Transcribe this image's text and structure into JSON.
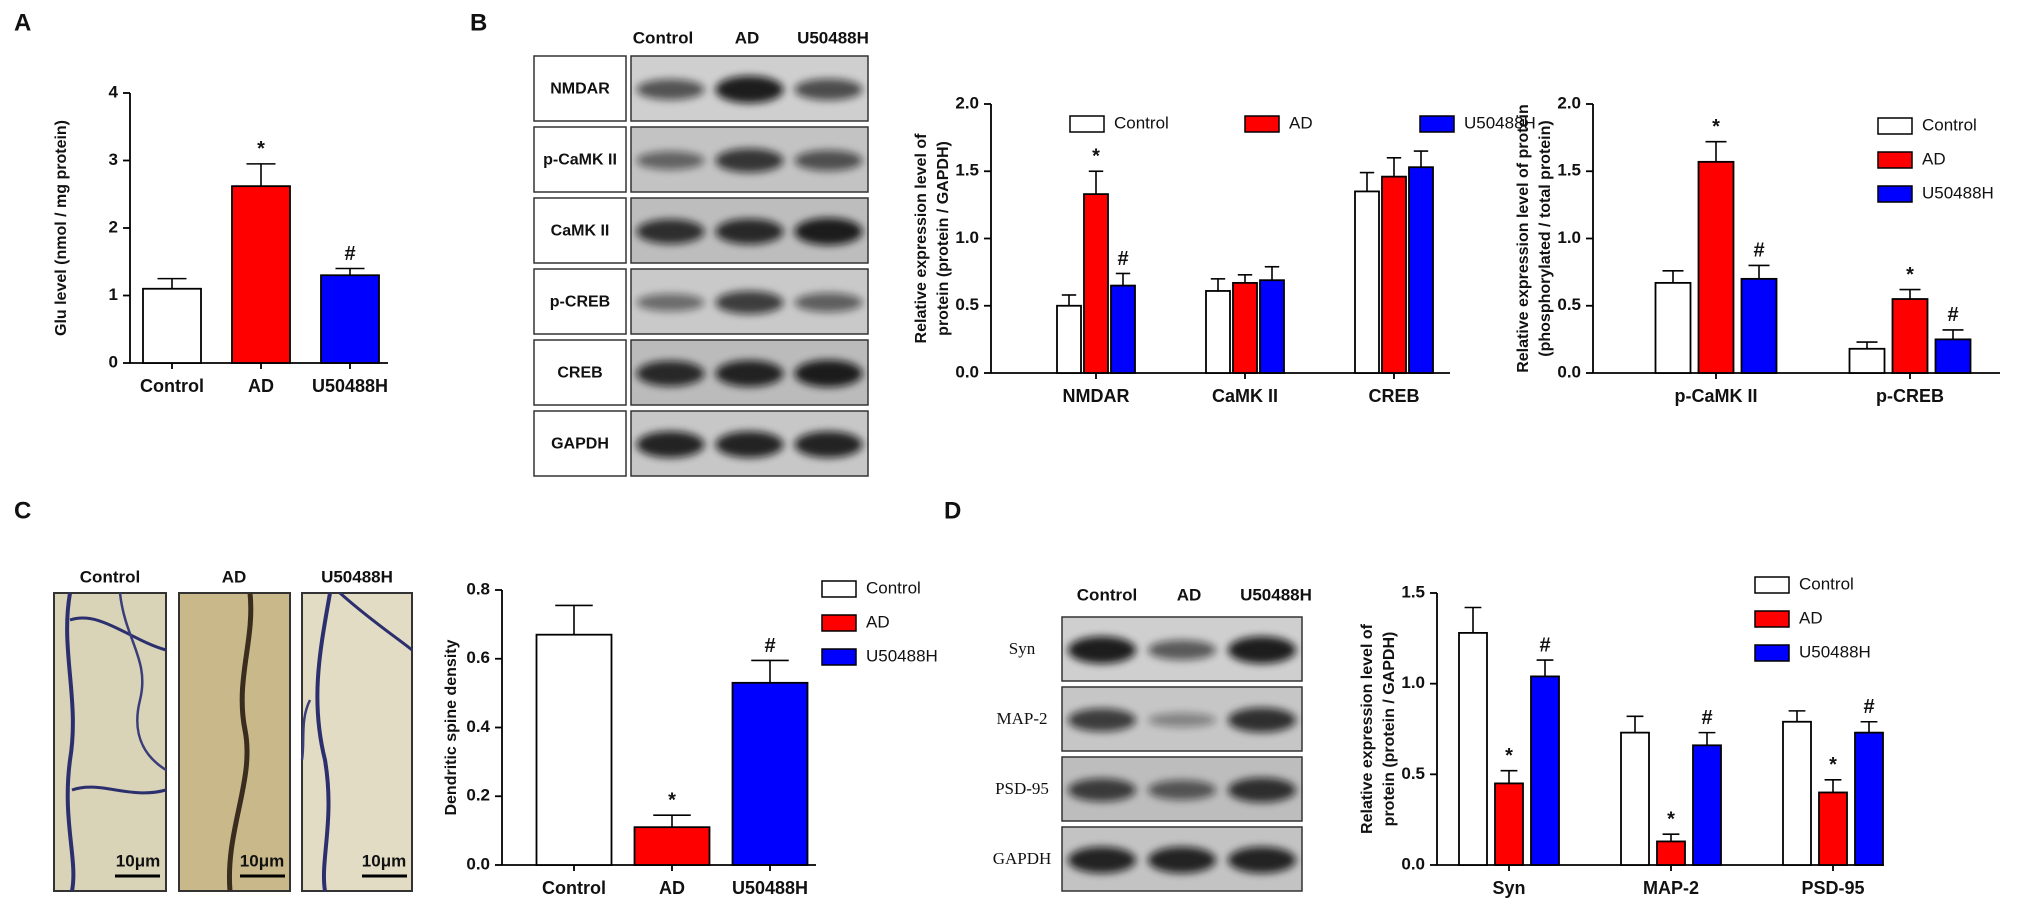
{
  "panel_labels": [
    "A",
    "B",
    "C",
    "D"
  ],
  "blots": [
    {
      "lanes": [
        "Control",
        "AD",
        "U50488H"
      ],
      "rows": [
        "NMDAR",
        "p-CaMK II",
        "CaMK II",
        "p-CREB",
        "CREB",
        "GAPDH"
      ]
    },
    {
      "lanes": [
        "Control",
        "AD",
        "U50488H"
      ],
      "rows": [
        "Syn",
        "MAP-2",
        "PSD-95",
        "GAPDH"
      ]
    }
  ],
  "micrographs": {
    "labels": [
      "Control",
      "AD",
      "U50488H"
    ],
    "scale_bar": "10μm"
  },
  "chart_data": [
    {
      "type": "bar",
      "ylabel": [
        "Glu level (nmol / mg protein)"
      ],
      "categories": [
        "Control",
        "AD",
        "U50488H"
      ],
      "values": [
        1.1,
        2.62,
        1.3
      ],
      "errors": [
        0.15,
        0.33,
        0.1
      ],
      "colors": [
        "#ffffff",
        "#ff0000",
        "#0000ff"
      ],
      "markers": [
        null,
        "*",
        "#"
      ],
      "ylim": [
        0,
        4
      ],
      "yticks": [
        0,
        1,
        2,
        3,
        4
      ]
    },
    {
      "type": "grouped_bar",
      "ylabel": [
        "Relative expression level of",
        "protein (protein / GAPDH)"
      ],
      "categories": [
        "NMDAR",
        "CaMK II",
        "CREB"
      ],
      "series": [
        {
          "name": "Control",
          "color": "#ffffff",
          "values": [
            0.5,
            0.61,
            1.35
          ],
          "errors": [
            0.08,
            0.09,
            0.14
          ],
          "markers": [
            null,
            null,
            null
          ]
        },
        {
          "name": "AD",
          "color": "#ff0000",
          "values": [
            1.33,
            0.67,
            1.46
          ],
          "errors": [
            0.17,
            0.06,
            0.14
          ],
          "markers": [
            "*",
            null,
            null
          ]
        },
        {
          "name": "U50488H",
          "color": "#0000ff",
          "values": [
            0.65,
            0.69,
            1.53
          ],
          "errors": [
            0.09,
            0.1,
            0.12
          ],
          "markers": [
            "#",
            null,
            null
          ]
        }
      ],
      "ylim": [
        0,
        2
      ],
      "yticks": [
        {
          "value": 0,
          "label": "0.0"
        },
        {
          "value": 0.5,
          "label": "0.5"
        },
        {
          "value": 1,
          "label": "1.0"
        },
        {
          "value": 1.5,
          "label": "1.5"
        },
        {
          "value": 2,
          "label": "2.0"
        }
      ],
      "legend": "top"
    },
    {
      "type": "grouped_bar",
      "ylabel": [
        "Relative expression level of protein",
        "(phosphorylated / total protein)"
      ],
      "categories": [
        "p-CaMK II",
        "p-CREB"
      ],
      "series": [
        {
          "name": "Control",
          "color": "#ffffff",
          "values": [
            0.67,
            0.18
          ],
          "errors": [
            0.09,
            0.05
          ],
          "markers": [
            null,
            null
          ]
        },
        {
          "name": "AD",
          "color": "#ff0000",
          "values": [
            1.57,
            0.55
          ],
          "errors": [
            0.15,
            0.07
          ],
          "markers": [
            "*",
            "*"
          ]
        },
        {
          "name": "U50488H",
          "color": "#0000ff",
          "values": [
            0.7,
            0.25
          ],
          "errors": [
            0.1,
            0.07
          ],
          "markers": [
            "#",
            "#"
          ]
        }
      ],
      "ylim": [
        0,
        2
      ],
      "yticks": [
        {
          "value": 0,
          "label": "0.0"
        },
        {
          "value": 0.5,
          "label": "0.5"
        },
        {
          "value": 1,
          "label": "1.0"
        },
        {
          "value": 1.5,
          "label": "1.5"
        },
        {
          "value": 2,
          "label": "2.0"
        }
      ],
      "legend": "right"
    },
    {
      "type": "bar",
      "ylabel": [
        "Dendritic spine density"
      ],
      "categories": [
        "Control",
        "AD",
        "U50488H"
      ],
      "values": [
        0.67,
        0.11,
        0.53
      ],
      "errors": [
        0.085,
        0.035,
        0.065
      ],
      "colors": [
        "#ffffff",
        "#ff0000",
        "#0000ff"
      ],
      "markers": [
        null,
        "*",
        "#"
      ],
      "ylim": [
        0,
        0.8
      ],
      "yticks": [
        {
          "value": 0,
          "label": "0.0"
        },
        {
          "value": 0.2,
          "label": "0.2"
        },
        {
          "value": 0.4,
          "label": "0.4"
        },
        {
          "value": 0.6,
          "label": "0.6"
        },
        {
          "value": 0.8,
          "label": "0.8"
        }
      ],
      "legend": "right"
    },
    {
      "type": "grouped_bar",
      "ylabel": [
        "Relative expression level of",
        "protein (protein / GAPDH)"
      ],
      "categories": [
        "Syn",
        "MAP-2",
        "PSD-95"
      ],
      "series": [
        {
          "name": "Control",
          "color": "#ffffff",
          "values": [
            1.28,
            0.73,
            0.79
          ],
          "errors": [
            0.14,
            0.09,
            0.06
          ],
          "markers": [
            null,
            null,
            null
          ]
        },
        {
          "name": "AD",
          "color": "#ff0000",
          "values": [
            0.45,
            0.13,
            0.4
          ],
          "errors": [
            0.07,
            0.04,
            0.07
          ],
          "markers": [
            "*",
            "*",
            "*"
          ]
        },
        {
          "name": "U50488H",
          "color": "#0000ff",
          "values": [
            1.04,
            0.66,
            0.73
          ],
          "errors": [
            0.09,
            0.07,
            0.06
          ],
          "markers": [
            "#",
            "#",
            "#"
          ]
        }
      ],
      "ylim": [
        0,
        1.5
      ],
      "yticks": [
        {
          "value": 0,
          "label": "0.0"
        },
        {
          "value": 0.5,
          "label": "0.5"
        },
        {
          "value": 1,
          "label": "1.0"
        },
        {
          "value": 1.5,
          "label": "1.5"
        }
      ],
      "legend": "right"
    }
  ]
}
